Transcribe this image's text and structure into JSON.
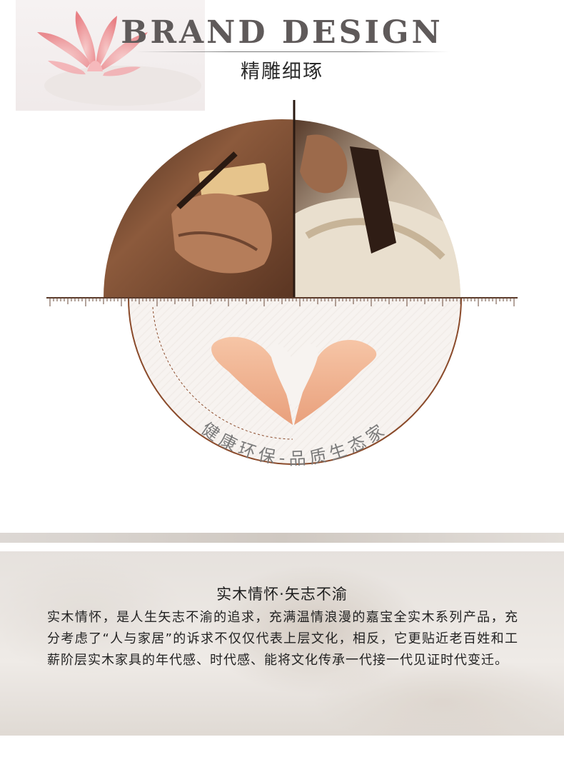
{
  "header": {
    "title": "BRAND DESIGN",
    "subtitle": "精雕细琢"
  },
  "circle": {
    "caption": "健康环保-品质生态家",
    "accent": "#8a4a2a"
  },
  "icons": {
    "lotus": "lotus-flower-icon",
    "heart_hands": "heart-hands-icon"
  },
  "story": {
    "title": "实木情怀·矢志不渝",
    "body": "实木情怀，是人生矢志不渝的追求，充满温情浪漫的嘉宝全实木系列产品，充分考虑了“人与家居”的诉求不仅仅代表上层文化，相反，它更贴近老百姓和工薪阶层实木家具的年代感、时代感、能将文化传承一代接一代见证时代变迁。"
  }
}
